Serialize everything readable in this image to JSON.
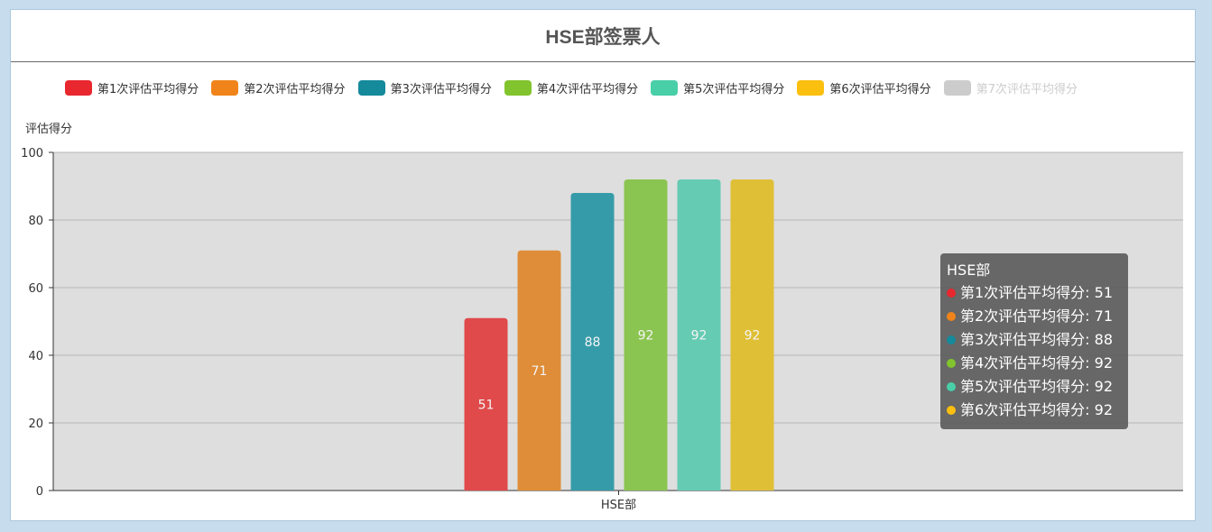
{
  "title": "HSE部签票人",
  "legend": [
    {
      "label": "第1次评估平均得分",
      "color": "#e8272f",
      "active": true
    },
    {
      "label": "第2次评估平均得分",
      "color": "#f0841a",
      "active": true
    },
    {
      "label": "第3次评估平均得分",
      "color": "#148a9b",
      "active": true
    },
    {
      "label": "第4次评估平均得分",
      "color": "#82c42d",
      "active": true
    },
    {
      "label": "第5次评估平均得分",
      "color": "#48cfa8",
      "active": true
    },
    {
      "label": "第6次评估平均得分",
      "color": "#fbbf10",
      "active": true
    },
    {
      "label": "第7次评估平均得分",
      "color": "#cccccc",
      "active": false
    }
  ],
  "tooltip": {
    "title": "HSE部",
    "rows": [
      {
        "text": "第1次评估平均得分: 51",
        "color": "#e8272f"
      },
      {
        "text": "第2次评估平均得分: 71",
        "color": "#f0841a"
      },
      {
        "text": "第3次评估平均得分: 88",
        "color": "#148a9b"
      },
      {
        "text": "第4次评估平均得分: 92",
        "color": "#82c42d"
      },
      {
        "text": "第5次评估平均得分: 92",
        "color": "#48cfa8"
      },
      {
        "text": "第6次评估平均得分: 92",
        "color": "#fbbf10"
      }
    ]
  },
  "chart_data": {
    "type": "bar",
    "categories": [
      "HSE部"
    ],
    "series": [
      {
        "name": "第1次评估平均得分",
        "values": [
          51
        ],
        "color": "#e04a4b"
      },
      {
        "name": "第2次评估平均得分",
        "values": [
          71
        ],
        "color": "#df8d38"
      },
      {
        "name": "第3次评估平均得分",
        "values": [
          88
        ],
        "color": "#369ba9"
      },
      {
        "name": "第4次评估平均得分",
        "values": [
          92
        ],
        "color": "#8bc551"
      },
      {
        "name": "第5次评估平均得分",
        "values": [
          92
        ],
        "color": "#65cbb3"
      },
      {
        "name": "第6次评估平均得分",
        "values": [
          92
        ],
        "color": "#dfbf36"
      }
    ],
    "ylabel": "评估得分",
    "xlabel": "",
    "ylim": [
      0,
      100
    ],
    "yticks": [
      0,
      20,
      40,
      60,
      80,
      100
    ],
    "grid": true,
    "background": "#dedede",
    "legend_position": "top"
  }
}
